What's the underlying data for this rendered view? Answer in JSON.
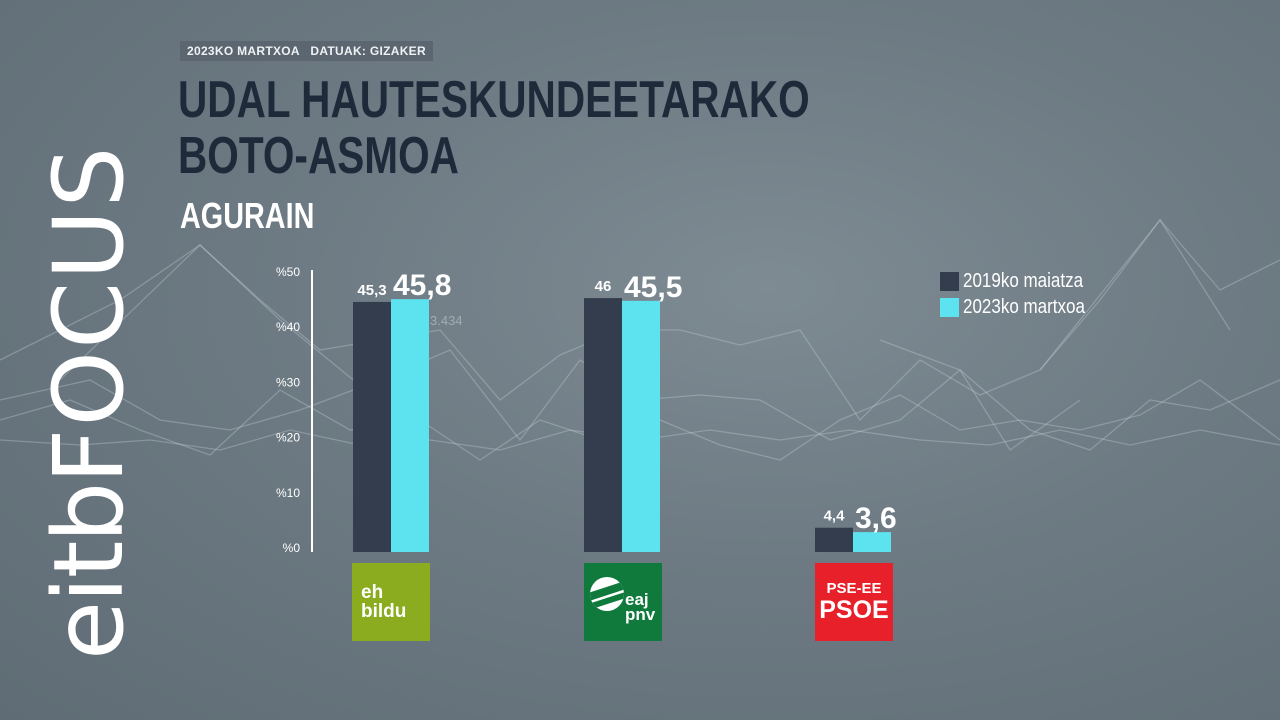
{
  "header": {
    "tag": "2023KO MARTXOA   DATUAK: GIZAKER",
    "title_line1": "UDAL HAUTESKUNDEETARAKO",
    "title_line2": "BOTO-ASMOA",
    "subtitle": "AGURAIN"
  },
  "logo": {
    "text_eitb": "eitb",
    "text_focus": "FOCUS"
  },
  "background_label": "3.434",
  "parties": [
    {
      "id": "ehbildu",
      "line1": "eh",
      "line2": "bildu",
      "color": "#8aac1e"
    },
    {
      "id": "pnv",
      "line1": "eaj",
      "line2": "pnv",
      "color": "#0f7a3c"
    },
    {
      "id": "psoe",
      "line1": "PSE-EE",
      "line2": "PSOE",
      "color": "#e8202a"
    }
  ],
  "chart_data": {
    "type": "bar",
    "categories": [
      "EH Bildu",
      "EAJ-PNV",
      "PSE-EE PSOE"
    ],
    "series": [
      {
        "name": "2019ko maiatza",
        "color": "#333d4d",
        "values": [
          45.3,
          46,
          4.4
        ],
        "labels": [
          "45,3",
          "46",
          "4,4"
        ]
      },
      {
        "name": "2023ko martxoa",
        "color": "#5de3f0",
        "values": [
          45.8,
          45.5,
          3.6
        ],
        "labels": [
          "45,8",
          "45,5",
          "3,6"
        ]
      }
    ],
    "yticks": [
      "%0",
      "%10",
      "%20",
      "%30",
      "%40",
      "%50"
    ],
    "ylim": [
      0,
      50
    ],
    "legend_position": "top-right"
  }
}
